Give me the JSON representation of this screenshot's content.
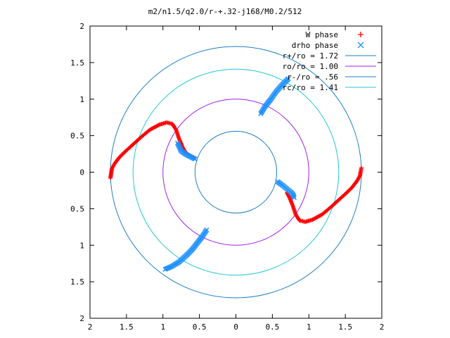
{
  "chart_data": {
    "type": "scatter",
    "title": "m2/n1.5/q2.0/r-+.32-j168/M0.2/512",
    "xlim": [
      -2,
      2
    ],
    "ylim": [
      -2,
      2
    ],
    "x_tick_values": [
      -2,
      -1.5,
      -1,
      -0.5,
      0,
      0.5,
      1,
      1.5,
      2
    ],
    "x_tick_labels": [
      "2",
      "1.5",
      "1",
      "0.5",
      "0",
      "0.5",
      "1",
      "1.5",
      "2"
    ],
    "y_tick_values": [
      2,
      1.5,
      1,
      0.5,
      0,
      -0.5,
      -1,
      -1.5,
      -2
    ],
    "y_tick_labels": [
      "2",
      "1.5",
      "1",
      "0.5",
      "0",
      "0.5",
      "1",
      "1.5",
      "2"
    ],
    "grid": false,
    "legend_position": "top-right",
    "series": [
      {
        "name": "W phase",
        "marker": "+",
        "color": "#ff0000",
        "points": [
          [
            -1.72,
            -0.08
          ],
          [
            -1.7,
            0.05
          ],
          [
            -1.66,
            0.12
          ],
          [
            -1.6,
            0.2
          ],
          [
            -1.52,
            0.28
          ],
          [
            -1.42,
            0.37
          ],
          [
            -1.3,
            0.48
          ],
          [
            -1.18,
            0.58
          ],
          [
            -1.05,
            0.65
          ],
          [
            -0.95,
            0.68
          ],
          [
            -0.87,
            0.66
          ],
          [
            -0.82,
            0.58
          ],
          [
            -0.78,
            0.46
          ],
          [
            -0.73,
            0.34
          ],
          [
            -0.68,
            0.26
          ],
          [
            -0.62,
            0.22
          ],
          [
            -0.57,
            0.19
          ],
          [
            1.72,
            0.06
          ],
          [
            1.7,
            -0.05
          ],
          [
            1.66,
            -0.12
          ],
          [
            1.6,
            -0.2
          ],
          [
            1.52,
            -0.28
          ],
          [
            1.42,
            -0.37
          ],
          [
            1.3,
            -0.48
          ],
          [
            1.18,
            -0.58
          ],
          [
            1.05,
            -0.65
          ],
          [
            0.95,
            -0.68
          ],
          [
            0.87,
            -0.66
          ],
          [
            0.82,
            -0.58
          ],
          [
            0.78,
            -0.46
          ],
          [
            0.74,
            -0.36
          ],
          [
            0.7,
            -0.28
          ]
        ]
      },
      {
        "name": "drho phase",
        "marker": "x",
        "color": "#1e90ff",
        "points": [
          [
            -0.8,
            0.4
          ],
          [
            -0.75,
            0.29
          ],
          [
            -0.68,
            0.24
          ],
          [
            -0.6,
            0.2
          ],
          [
            -0.56,
            0.18
          ],
          [
            -0.97,
            -1.33
          ],
          [
            -0.88,
            -1.29
          ],
          [
            -0.78,
            -1.23
          ],
          [
            -0.68,
            -1.14
          ],
          [
            -0.6,
            -1.06
          ],
          [
            -0.53,
            -0.97
          ],
          [
            -0.46,
            -0.88
          ],
          [
            -0.4,
            -0.79
          ],
          [
            0.34,
            0.8
          ],
          [
            0.4,
            0.9
          ],
          [
            0.48,
            1.0
          ],
          [
            0.55,
            1.1
          ],
          [
            0.62,
            1.18
          ],
          [
            0.68,
            1.24
          ],
          [
            0.72,
            1.28
          ],
          [
            0.57,
            -0.13
          ],
          [
            0.64,
            -0.18
          ],
          [
            0.7,
            -0.23
          ],
          [
            0.75,
            -0.27
          ],
          [
            0.78,
            -0.3
          ],
          [
            0.8,
            -0.35
          ]
        ]
      },
      {
        "name": "r+/ro = 1.72",
        "type": "circle",
        "radius": 1.72,
        "color": "#1e7fc4"
      },
      {
        "name": "ro/ro = 1.00",
        "type": "circle",
        "radius": 1.0,
        "color": "#a020f0"
      },
      {
        "name": "r-/ro = .56",
        "type": "circle",
        "radius": 0.56,
        "color": "#1e7fc4"
      },
      {
        "name": "rc/ro = 1.41",
        "type": "circle",
        "radius": 1.41,
        "color": "#20c8d8"
      }
    ]
  }
}
